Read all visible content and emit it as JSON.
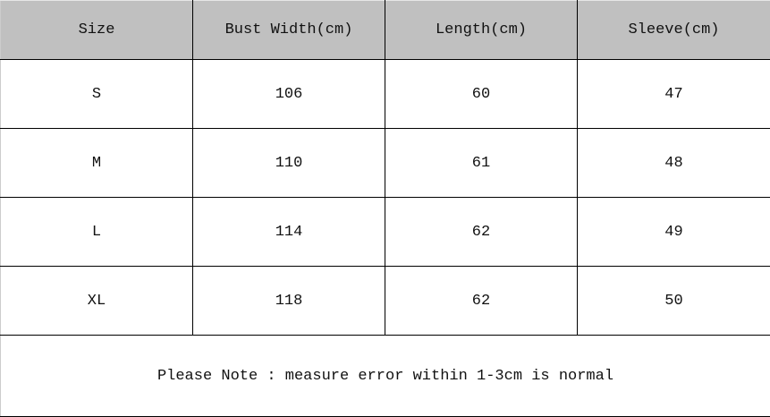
{
  "headers": [
    "Size",
    "Bust Width(cm)",
    "Length(cm)",
    "Sleeve(cm)"
  ],
  "rows": [
    [
      "S",
      "106",
      "60",
      "47"
    ],
    [
      "M",
      "110",
      "61",
      "48"
    ],
    [
      "L",
      "114",
      "62",
      "49"
    ],
    [
      "XL",
      "118",
      "62",
      "50"
    ]
  ],
  "note": "Please Note : measure error within 1-3cm is normal",
  "colors": {
    "header_bg": "#c0c0c0",
    "border": "#000000"
  }
}
